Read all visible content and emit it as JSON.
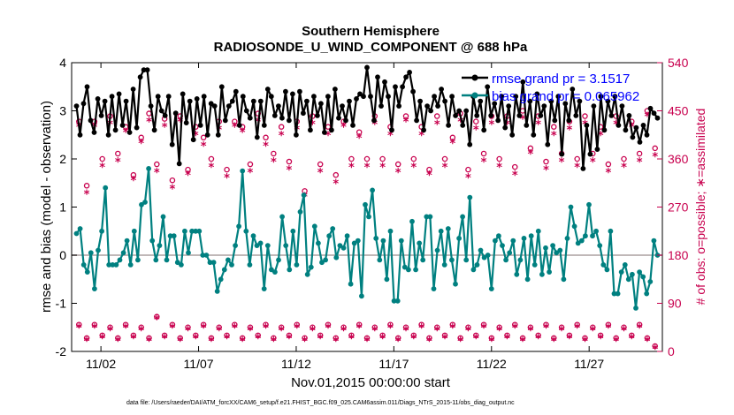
{
  "chart_data": {
    "type": "line",
    "title": "Southern Hemisphere",
    "subtitle": "RADIOSONDE_U_WIND_COMPONENT @ 688 hPa",
    "xlabel": "Nov.01,2015 00:00:00 start",
    "ylabel": "rmse and bias (model - observation)",
    "ylabel_right": "# of obs: o=possible; ∗=assimilated",
    "footnote": "data file: /Users/raeder/DAI/ATM_forcXX/CAM6_setup/f.e21.FHIST_BGC.f09_025.CAM6assim.011/Diags_NTrS_2015-11/obs_diag_output.nc",
    "xlim": [
      0.5,
      30.75
    ],
    "ylim": [
      -2,
      4
    ],
    "ylim_right": [
      0,
      540
    ],
    "x_tick_values": [
      2,
      7,
      12,
      17,
      22,
      27
    ],
    "x_tick_labels": [
      "11/02",
      "11/07",
      "11/12",
      "11/17",
      "11/22",
      "11/27"
    ],
    "y_ticks": [
      -2,
      -1,
      0,
      1,
      2,
      3,
      4
    ],
    "y_ticks_right": [
      0,
      90,
      180,
      270,
      360,
      450,
      540
    ],
    "zero_line": 0,
    "grid": false,
    "legend_position": "top-right",
    "series": [
      {
        "name": "rmse grand pr = 3.1517",
        "color": "#000000",
        "marker": "filled-circle",
        "values": [
          3.1,
          2.5,
          3.15,
          3.5,
          2.8,
          2.55,
          3.25,
          2.9,
          3.2,
          2.5,
          3.3,
          2.6,
          3.35,
          2.7,
          3.2,
          2.55,
          3.45,
          2.65,
          3.7,
          3.85,
          3.85,
          3.1,
          2.6,
          3.3,
          3.0,
          2.9,
          3.3,
          2.3,
          2.95,
          1.9,
          3.35,
          2.75,
          3.2,
          2.4,
          3.25,
          2.7,
          3.3,
          2.5,
          3.15,
          3.1,
          2.5,
          3.5,
          2.8,
          3.1,
          3.2,
          3.4,
          2.7,
          3.3,
          3.0,
          2.85,
          3.2,
          2.45,
          3.2,
          2.7,
          3.45,
          3.3,
          2.9,
          3.1,
          2.85,
          3.4,
          2.8,
          3.35,
          2.5,
          3.4,
          2.95,
          3.2,
          2.6,
          3.3,
          2.9,
          3.15,
          2.55,
          3.3,
          2.6,
          3.45,
          2.85,
          3.1,
          2.8,
          3.2,
          2.7,
          3.25,
          3.35,
          3.3,
          3.9,
          3.3,
          2.8,
          3.7,
          3.1,
          3.6,
          3.3,
          2.6,
          3.5,
          3.1,
          3.5,
          3.7,
          3.8,
          3.4,
          2.8,
          3.2,
          2.6,
          3.1,
          3.0,
          3.3,
          3.1,
          3.45,
          3.2,
          2.7,
          3.3,
          2.9,
          3.0,
          2.7,
          3.0,
          2.3,
          3.3,
          2.9,
          3.2,
          2.6,
          3.5,
          2.9,
          3.15,
          2.8,
          3.3,
          2.65,
          3.1,
          2.5,
          3.3,
          2.9,
          3.6,
          2.7,
          3.2,
          2.5,
          3.35,
          2.9,
          3.1,
          2.3,
          3.2,
          2.8,
          3.3,
          2.1,
          3.15,
          2.8,
          3.45,
          2.9,
          3.2,
          1.8,
          2.7,
          2.1,
          3.1,
          2.2,
          3.3,
          2.6,
          3.2,
          2.9,
          3.3,
          2.7,
          3.1,
          2.6,
          2.9,
          2.45,
          2.65,
          2.35,
          2.7,
          2.5,
          3.05,
          2.95,
          2.85
        ]
      },
      {
        "name": "bias grand pr = 0.065962",
        "color": "#008080",
        "marker": "filled-circle",
        "values": [
          0.45,
          0.55,
          -0.2,
          -0.35,
          0.05,
          -0.7,
          0.1,
          0.5,
          1.4,
          -0.2,
          -0.2,
          -0.2,
          -0.1,
          0.05,
          0.3,
          -0.2,
          0.5,
          -0.1,
          1.05,
          1.1,
          1.8,
          0.3,
          -0.1,
          0.2,
          0.8,
          -0.1,
          0.4,
          0.4,
          -0.15,
          -0.2,
          0.5,
          0.05,
          0.5,
          0.5,
          0.5,
          0.0,
          0.0,
          -0.15,
          -0.15,
          -0.75,
          -0.5,
          -0.3,
          -0.1,
          -0.2,
          0.2,
          0.6,
          1.75,
          0.5,
          -0.2,
          0.4,
          0.2,
          0.25,
          -0.7,
          0.2,
          -0.3,
          -0.35,
          -0.1,
          0.8,
          0.2,
          -0.3,
          0.5,
          -0.2,
          0.9,
          1.25,
          -0.4,
          -0.25,
          0.6,
          0.25,
          -0.15,
          -0.1,
          0.4,
          0.55,
          -0.05,
          0.2,
          0.15,
          0.4,
          -0.6,
          0.25,
          0.3,
          -0.85,
          1.05,
          0.8,
          1.35,
          0.35,
          -0.1,
          0.3,
          -0.5,
          0.5,
          -0.95,
          -0.95,
          0.3,
          -0.25,
          -0.3,
          0.7,
          -0.3,
          0.25,
          -0.1,
          0.8,
          0.8,
          -0.7,
          0.1,
          0.5,
          -0.2,
          0.55,
          -0.1,
          -0.6,
          0.35,
          0.8,
          -0.1,
          1.2,
          -0.3,
          -0.2,
          0.1,
          -0.05,
          0.0,
          -0.7,
          0.3,
          0.4,
          0.2,
          -0.1,
          0.05,
          0.3,
          -0.4,
          -0.1,
          0.35,
          -0.5,
          0.4,
          -0.2,
          0.5,
          -0.4,
          0.15,
          -0.35,
          0.2,
          0.05,
          0.1,
          -0.5,
          0.35,
          1.0,
          0.6,
          0.25,
          0.3,
          0.4,
          1.05,
          0.4,
          0.5,
          0.2,
          -0.2,
          -0.3,
          0.5,
          -0.8,
          -0.8,
          -0.35,
          -0.2,
          -0.5,
          -0.4,
          -1.1,
          -0.35,
          -0.45,
          -0.8,
          -0.55,
          0.3,
          0.0
        ]
      }
    ],
    "obs_possible_color": "#c8004e",
    "obs_assimilated_color": "#c8004e",
    "obs_possible_high": [
      430,
      310,
      430,
      360,
      440,
      370,
      420,
      330,
      400,
      445,
      350,
      435,
      320,
      440,
      340,
      420,
      400,
      360,
      430,
      340,
      430,
      420,
      350,
      445,
      400,
      370,
      420,
      355,
      430,
      300,
      440,
      350,
      420,
      330,
      430,
      360,
      410,
      360,
      440,
      360,
      420,
      350,
      440,
      360,
      420,
      340,
      440,
      360,
      400,
      445,
      340,
      430,
      370,
      440,
      360,
      440,
      345,
      450,
      380,
      440,
      355,
      420,
      370,
      430,
      360,
      440,
      370,
      420,
      350,
      440,
      360,
      430,
      370,
      450,
      380
    ],
    "obs_assimilated_high": [
      420,
      295,
      420,
      345,
      425,
      355,
      410,
      320,
      390,
      430,
      335,
      420,
      305,
      430,
      330,
      405,
      385,
      345,
      415,
      325,
      420,
      410,
      335,
      430,
      385,
      355,
      405,
      340,
      415,
      290,
      425,
      335,
      405,
      315,
      420,
      345,
      400,
      345,
      425,
      345,
      405,
      335,
      430,
      345,
      405,
      330,
      425,
      345,
      390,
      430,
      325,
      415,
      355,
      425,
      345,
      425,
      330,
      435,
      370,
      425,
      340,
      405,
      355,
      415,
      345,
      425,
      355,
      405,
      335,
      425,
      345,
      420,
      355,
      440,
      365
    ],
    "obs_possible_low": [
      50,
      25,
      50,
      30,
      45,
      25,
      50,
      30,
      45,
      25,
      65,
      30,
      50,
      25,
      45,
      30,
      50,
      25,
      45,
      30,
      50,
      25,
      45,
      30,
      50,
      25,
      45,
      30,
      50,
      25,
      45,
      30,
      50,
      25,
      45,
      30,
      50,
      25,
      45,
      30,
      50,
      25,
      45,
      30,
      50,
      25,
      45,
      30,
      50,
      25,
      45,
      30,
      50,
      25,
      45,
      30,
      50,
      25,
      45,
      30,
      50,
      25,
      45,
      30,
      50,
      25,
      45,
      30,
      50,
      25,
      45,
      30,
      50,
      25,
      10
    ],
    "obs_assimilated_low": [
      45,
      20,
      45,
      25,
      40,
      20,
      45,
      25,
      40,
      20,
      60,
      25,
      45,
      20,
      40,
      25,
      45,
      20,
      40,
      25,
      45,
      20,
      40,
      25,
      45,
      20,
      40,
      25,
      45,
      20,
      40,
      25,
      45,
      20,
      40,
      25,
      45,
      20,
      40,
      25,
      45,
      20,
      40,
      25,
      45,
      20,
      40,
      25,
      45,
      20,
      40,
      25,
      45,
      20,
      40,
      25,
      45,
      20,
      40,
      25,
      45,
      20,
      40,
      25,
      45,
      20,
      40,
      25,
      45,
      20,
      40,
      25,
      45,
      20,
      5
    ]
  }
}
